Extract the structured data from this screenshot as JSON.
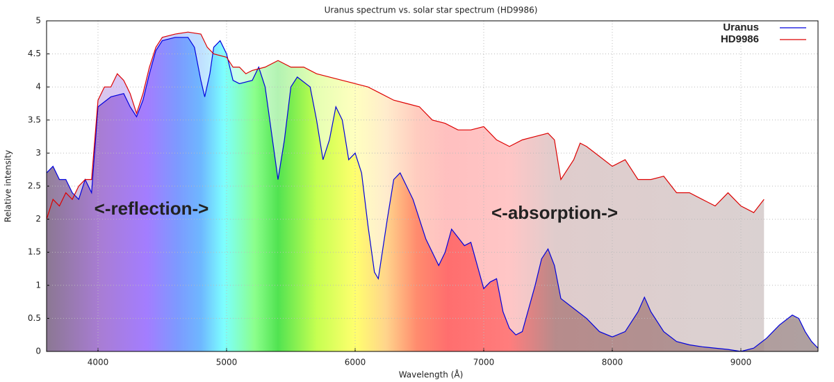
{
  "chart_data": {
    "type": "line",
    "title": "Uranus spectrum vs. solar star spectrum (HD9986)",
    "x_label": "Wavelength (Å)",
    "y_label": "Relative intensity",
    "annotations": [
      "<-reflection->",
      "<-absorption->"
    ],
    "xlim": [
      3600,
      9600
    ],
    "xticks": [
      4000,
      5000,
      6000,
      7000,
      8000,
      9000
    ],
    "ylim": [
      0,
      5
    ],
    "yticks": [
      0,
      0.5,
      1,
      1.5,
      2,
      2.5,
      3,
      3.5,
      4,
      4.5,
      5
    ],
    "grid": true,
    "legend": "upper right",
    "series": [
      {
        "name": "Uranus",
        "color": "#0000dd",
        "x": [
          3600,
          3650,
          3700,
          3750,
          3800,
          3850,
          3900,
          3950,
          4000,
          4100,
          4200,
          4250,
          4300,
          4350,
          4400,
          4450,
          4500,
          4600,
          4700,
          4750,
          4800,
          4830,
          4870,
          4900,
          4950,
          5000,
          5050,
          5100,
          5200,
          5250,
          5300,
          5350,
          5400,
          5450,
          5500,
          5550,
          5650,
          5700,
          5750,
          5800,
          5850,
          5900,
          5950,
          6000,
          6050,
          6100,
          6150,
          6180,
          6250,
          6300,
          6350,
          6450,
          6550,
          6600,
          6650,
          6700,
          6750,
          6850,
          6900,
          6950,
          7000,
          7050,
          7100,
          7150,
          7200,
          7250,
          7300,
          7400,
          7450,
          7500,
          7550,
          7600,
          7700,
          7800,
          7900,
          8000,
          8100,
          8200,
          8250,
          8300,
          8400,
          8500,
          8600,
          8700,
          8800,
          8900,
          9000,
          9100,
          9200,
          9300,
          9400,
          9450,
          9500,
          9550,
          9600
        ],
        "values": [
          2.7,
          2.8,
          2.6,
          2.6,
          2.4,
          2.3,
          2.6,
          2.4,
          3.7,
          3.85,
          3.9,
          3.7,
          3.55,
          3.8,
          4.2,
          4.55,
          4.7,
          4.75,
          4.75,
          4.6,
          4.1,
          3.85,
          4.2,
          4.6,
          4.7,
          4.5,
          4.1,
          4.05,
          4.1,
          4.3,
          4.0,
          3.3,
          2.6,
          3.2,
          4.0,
          4.15,
          4.0,
          3.5,
          2.9,
          3.2,
          3.7,
          3.5,
          2.9,
          3.0,
          2.7,
          1.9,
          1.2,
          1.1,
          2.0,
          2.6,
          2.7,
          2.3,
          1.7,
          1.5,
          1.3,
          1.5,
          1.85,
          1.6,
          1.65,
          1.3,
          0.95,
          1.05,
          1.1,
          0.6,
          0.35,
          0.25,
          0.3,
          1.0,
          1.4,
          1.55,
          1.3,
          0.8,
          0.65,
          0.5,
          0.3,
          0.22,
          0.3,
          0.6,
          0.82,
          0.6,
          0.3,
          0.15,
          0.1,
          0.07,
          0.05,
          0.03,
          0.0,
          0.05,
          0.2,
          0.4,
          0.55,
          0.5,
          0.3,
          0.15,
          0.05
        ]
      },
      {
        "name": "HD9986",
        "color": "#dd0000",
        "x": [
          3600,
          3650,
          3700,
          3750,
          3800,
          3850,
          3900,
          3950,
          4000,
          4050,
          4100,
          4150,
          4200,
          4250,
          4300,
          4350,
          4400,
          4450,
          4500,
          4600,
          4700,
          4800,
          4850,
          4900,
          5000,
          5050,
          5100,
          5150,
          5200,
          5300,
          5400,
          5500,
          5600,
          5700,
          5800,
          5900,
          6000,
          6100,
          6200,
          6300,
          6400,
          6500,
          6600,
          6700,
          6800,
          6900,
          7000,
          7100,
          7200,
          7300,
          7400,
          7500,
          7550,
          7600,
          7700,
          7750,
          7800,
          7900,
          8000,
          8100,
          8200,
          8300,
          8400,
          8500,
          8600,
          8700,
          8800,
          8900,
          9000,
          9100,
          9180
        ],
        "values": [
          2.0,
          2.3,
          2.2,
          2.4,
          2.3,
          2.5,
          2.6,
          2.6,
          3.8,
          4.0,
          4.0,
          4.2,
          4.1,
          3.9,
          3.6,
          3.9,
          4.3,
          4.6,
          4.75,
          4.8,
          4.83,
          4.8,
          4.6,
          4.5,
          4.45,
          4.3,
          4.3,
          4.2,
          4.25,
          4.3,
          4.4,
          4.3,
          4.3,
          4.2,
          4.15,
          4.1,
          4.05,
          4.0,
          3.9,
          3.8,
          3.75,
          3.7,
          3.5,
          3.45,
          3.35,
          3.35,
          3.4,
          3.2,
          3.1,
          3.2,
          3.25,
          3.3,
          3.2,
          2.6,
          2.9,
          3.15,
          3.1,
          2.95,
          2.8,
          2.9,
          2.6,
          2.6,
          2.65,
          2.4,
          2.4,
          2.3,
          2.2,
          2.4,
          2.2,
          2.1,
          2.3
        ]
      }
    ]
  }
}
